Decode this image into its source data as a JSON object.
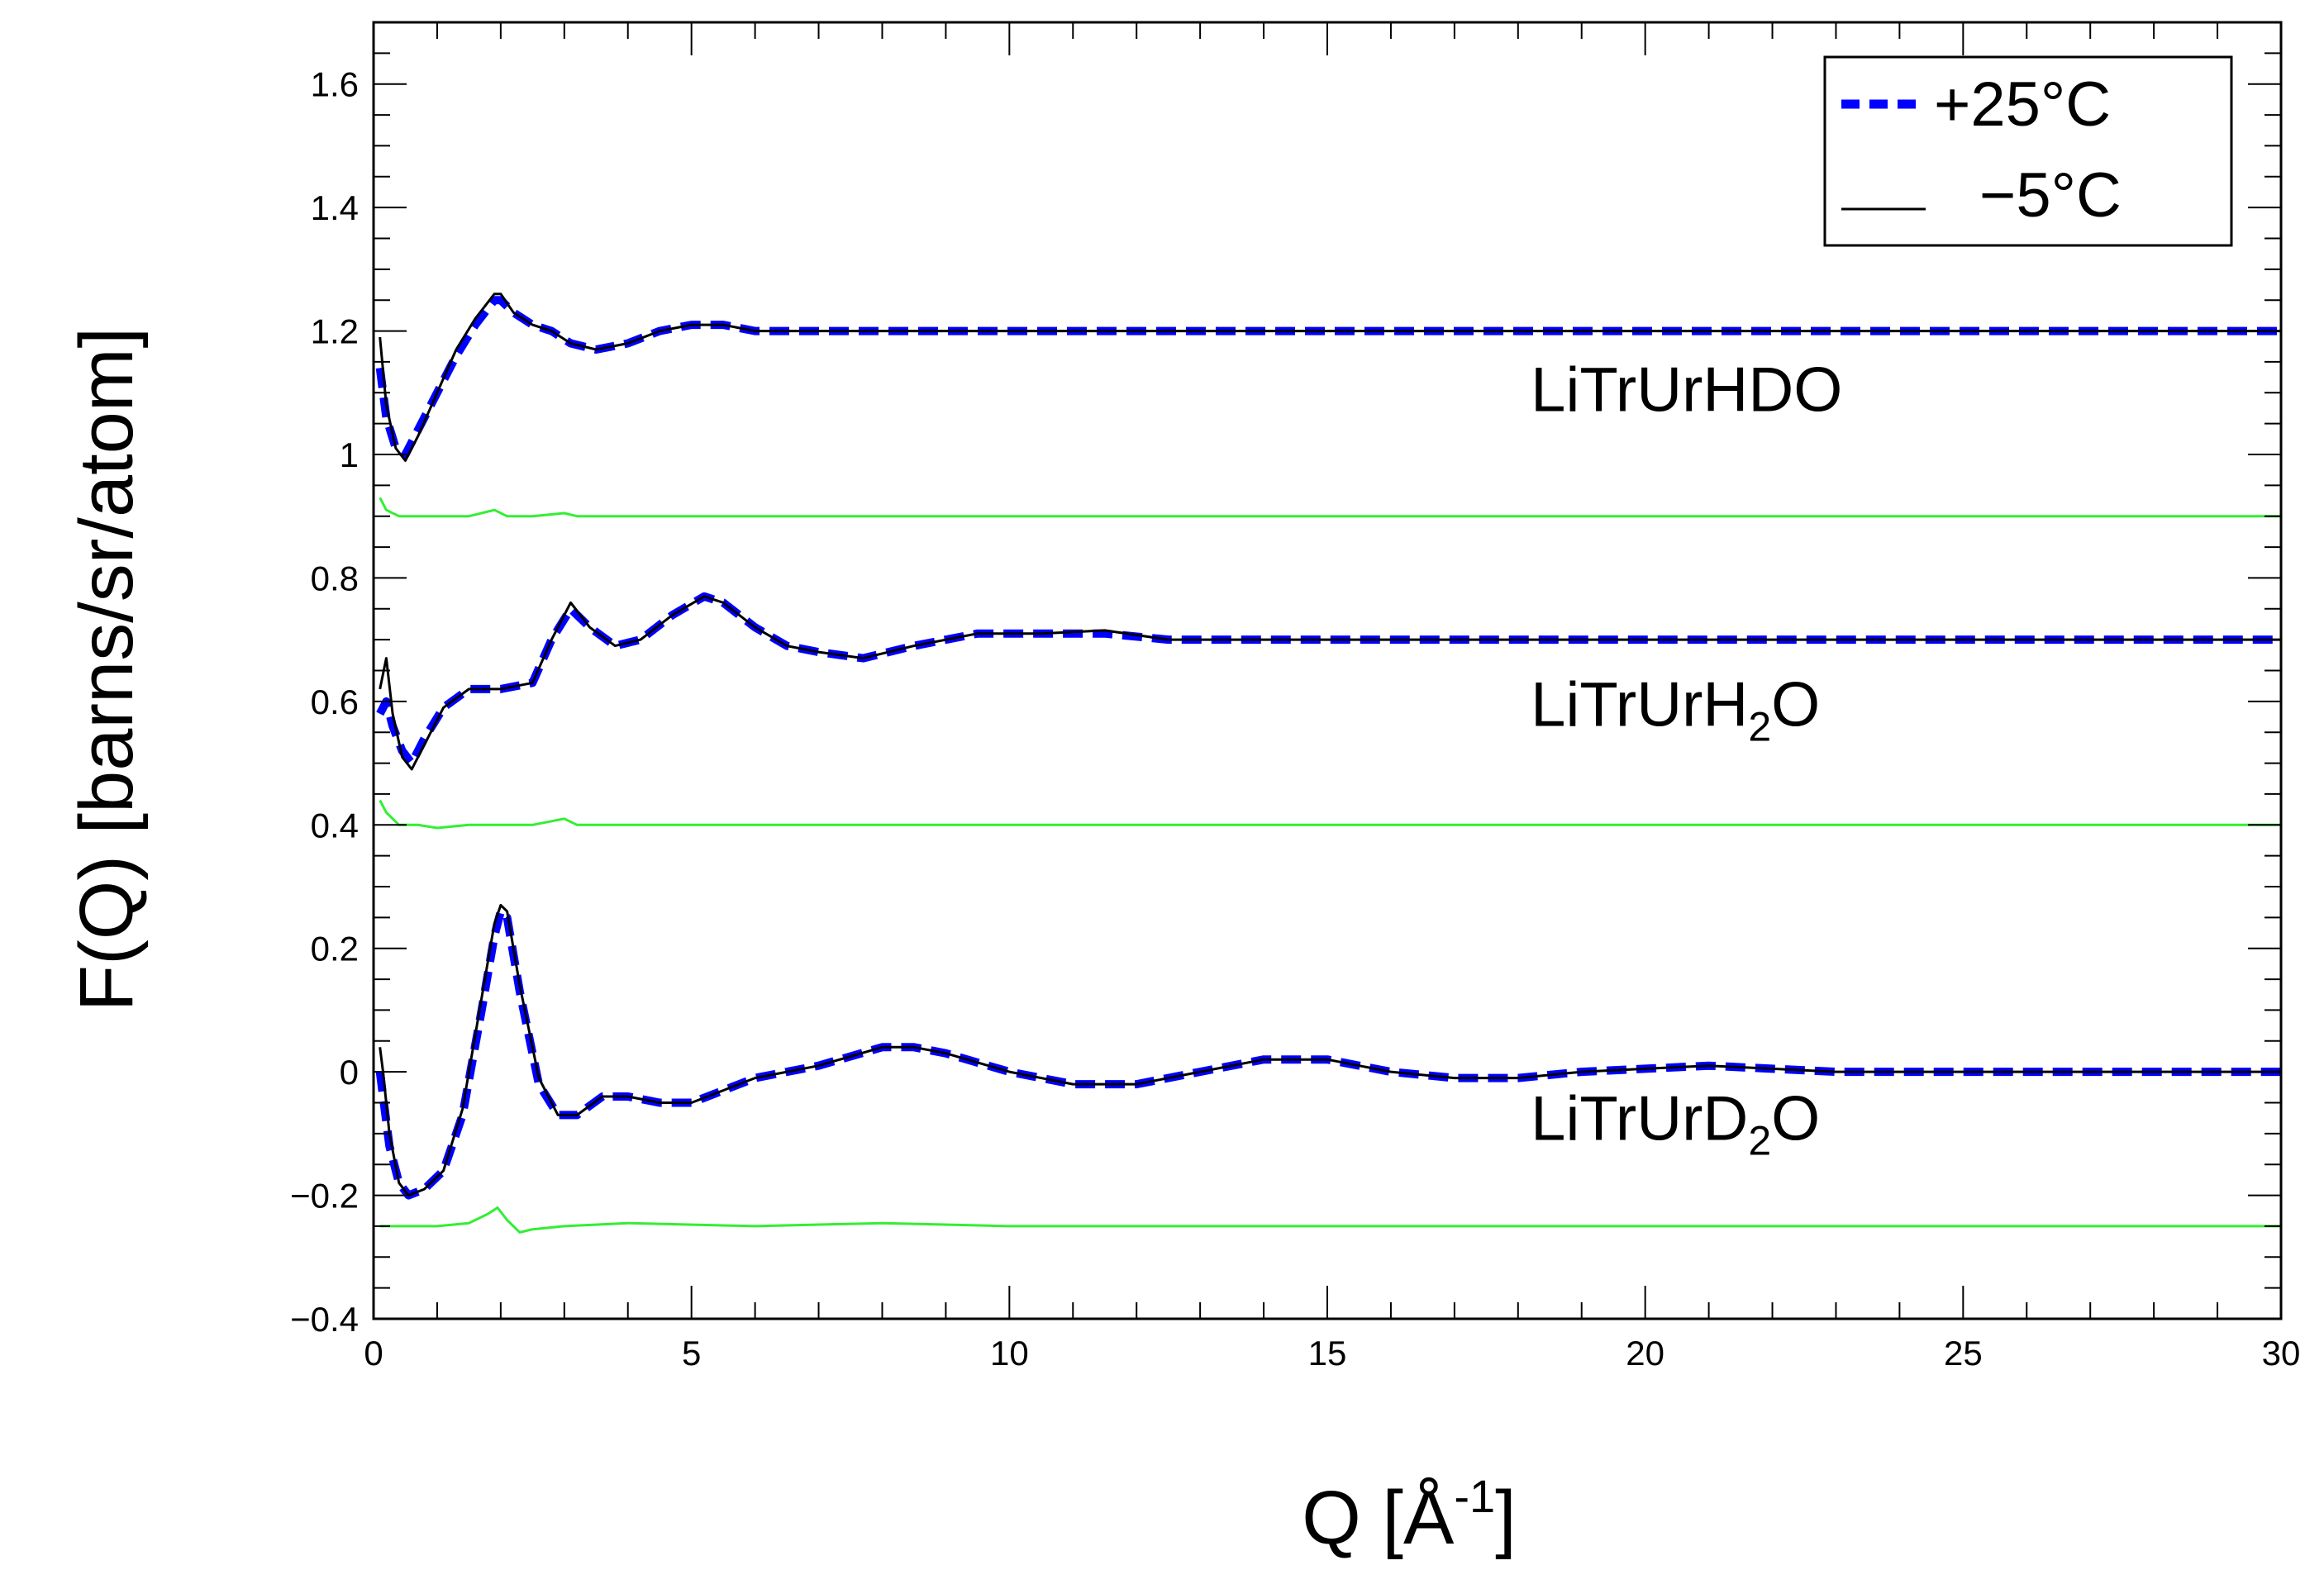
{
  "chart_data": {
    "type": "line",
    "xlabel": "Q [Å",
    "xlabel_sup": "-1",
    "xlabel_close": "]",
    "ylabel": "F(Q) [barns/sr/atom]",
    "xlim": [
      0,
      30
    ],
    "ylim": [
      -0.4,
      1.7
    ],
    "xticks": [
      0,
      5,
      10,
      15,
      20,
      25,
      30
    ],
    "xtick_labels": [
      "0",
      "5",
      "10",
      "15",
      "20",
      "25",
      "30"
    ],
    "yticks": [
      -0.4,
      -0.2,
      0,
      0.2,
      0.4,
      0.6,
      0.8,
      1,
      1.2,
      1.4,
      1.6
    ],
    "ytick_labels": [
      "−0.4",
      "−0.2",
      "0",
      "0.2",
      "0.4",
      "0.6",
      "0.8",
      "1",
      "1.2",
      "1.4",
      "1.6"
    ],
    "legend": {
      "position": "top-right",
      "entries": [
        {
          "label": "+25°C",
          "style": "dashed",
          "color": "#0000ff"
        },
        {
          "label": "−5°C",
          "style": "solid",
          "color": "#000000"
        }
      ]
    },
    "curve_labels": [
      {
        "text": "LiTrUrHDO",
        "sub": "",
        "tail": "",
        "x": 18.2,
        "y": 1.07
      },
      {
        "text": "LiTrUrH",
        "sub": "2",
        "tail": "O",
        "x": 18.2,
        "y": 0.56
      },
      {
        "text": "LiTrUrD",
        "sub": "2",
        "tail": "O",
        "x": 18.2,
        "y": -0.11
      }
    ],
    "series": [
      {
        "name": "+25°C",
        "group": "LiTrUrHDO",
        "color": "#0000ff",
        "style": "dashed",
        "x": [
          0.1,
          0.2,
          0.35,
          0.5,
          0.7,
          1.0,
          1.3,
          1.6,
          1.9,
          2.0,
          2.2,
          2.5,
          2.8,
          3.1,
          3.5,
          4.0,
          4.5,
          5.0,
          5.5,
          6.0,
          7.0,
          8.0,
          9.0,
          10.0,
          11.0,
          12.0,
          13.0,
          14.0,
          15.0,
          16.0,
          17.0,
          18.0,
          19.0,
          20.0,
          21.0,
          22.0,
          23.0,
          24.0,
          25.0,
          26.0,
          27.0,
          28.0,
          29.0,
          30.0
        ],
        "y": [
          1.14,
          1.06,
          1.01,
          1.0,
          1.04,
          1.1,
          1.16,
          1.21,
          1.25,
          1.25,
          1.23,
          1.21,
          1.2,
          1.18,
          1.17,
          1.18,
          1.2,
          1.21,
          1.21,
          1.2,
          1.2,
          1.2,
          1.2,
          1.2,
          1.2,
          1.2,
          1.2,
          1.2,
          1.2,
          1.2,
          1.2,
          1.2,
          1.2,
          1.2,
          1.2,
          1.2,
          1.2,
          1.2,
          1.2,
          1.2,
          1.2,
          1.2,
          1.2,
          1.2
        ]
      },
      {
        "name": "−5°C",
        "group": "LiTrUrHDO",
        "color": "#000000",
        "style": "solid",
        "x": [
          0.1,
          0.2,
          0.35,
          0.5,
          0.7,
          1.0,
          1.3,
          1.6,
          1.9,
          2.0,
          2.2,
          2.5,
          2.8,
          3.1,
          3.5,
          4.0,
          4.5,
          5.0,
          5.5,
          6.0,
          7.0,
          8.0,
          9.0,
          10.0,
          11.0,
          12.0,
          13.0,
          14.0,
          15.0,
          16.0,
          17.0,
          18.0,
          19.0,
          20.0,
          21.0,
          22.0,
          23.0,
          24.0,
          25.0,
          26.0,
          27.0,
          28.0,
          29.0,
          30.0
        ],
        "y": [
          1.19,
          1.08,
          1.01,
          0.99,
          1.03,
          1.1,
          1.17,
          1.22,
          1.26,
          1.26,
          1.23,
          1.21,
          1.2,
          1.18,
          1.17,
          1.18,
          1.2,
          1.21,
          1.21,
          1.2,
          1.2,
          1.2,
          1.2,
          1.2,
          1.2,
          1.2,
          1.2,
          1.2,
          1.2,
          1.2,
          1.2,
          1.2,
          1.2,
          1.2,
          1.2,
          1.2,
          1.2,
          1.2,
          1.2,
          1.2,
          1.2,
          1.2,
          1.2,
          1.2
        ]
      },
      {
        "name": "",
        "group": "LiTrUrHDO",
        "color": "#33ee33",
        "style": "solid",
        "x": [
          0.1,
          0.2,
          0.4,
          0.7,
          1.0,
          1.5,
          1.9,
          2.1,
          2.5,
          3.0,
          3.2,
          3.6,
          4.5,
          6,
          8,
          10,
          12,
          14,
          16,
          18,
          20,
          22,
          24,
          26,
          28,
          30
        ],
        "y": [
          0.93,
          0.91,
          0.9,
          0.9,
          0.9,
          0.9,
          0.91,
          0.9,
          0.9,
          0.905,
          0.9,
          0.9,
          0.9,
          0.9,
          0.9,
          0.9,
          0.9,
          0.9,
          0.9,
          0.9,
          0.9,
          0.9,
          0.9,
          0.9,
          0.9,
          0.9
        ]
      },
      {
        "name": "+25°C",
        "group": "LiTrUrH2O",
        "color": "#0000ff",
        "style": "dashed",
        "x": [
          0.1,
          0.2,
          0.3,
          0.45,
          0.6,
          0.8,
          1.1,
          1.5,
          2.0,
          2.5,
          2.8,
          3.1,
          3.4,
          3.8,
          4.2,
          4.7,
          5.2,
          5.5,
          6.0,
          6.5,
          7.0,
          7.7,
          8.5,
          9.5,
          10.5,
          11.5,
          12.5,
          14,
          16,
          18,
          20,
          22,
          24,
          26,
          28,
          30
        ],
        "y": [
          0.58,
          0.6,
          0.56,
          0.52,
          0.5,
          0.54,
          0.59,
          0.62,
          0.62,
          0.63,
          0.7,
          0.75,
          0.72,
          0.69,
          0.7,
          0.74,
          0.77,
          0.76,
          0.72,
          0.69,
          0.68,
          0.67,
          0.69,
          0.71,
          0.71,
          0.71,
          0.7,
          0.7,
          0.7,
          0.7,
          0.7,
          0.7,
          0.7,
          0.7,
          0.7,
          0.7
        ]
      },
      {
        "name": "−5°C",
        "group": "LiTrUrH2O",
        "color": "#000000",
        "style": "solid",
        "x": [
          0.1,
          0.2,
          0.3,
          0.45,
          0.6,
          0.8,
          1.1,
          1.5,
          2.0,
          2.5,
          2.8,
          3.1,
          3.4,
          3.8,
          4.2,
          4.7,
          5.2,
          5.5,
          6.0,
          6.5,
          7.0,
          7.7,
          8.5,
          9.5,
          10.5,
          11.5,
          12.5,
          14,
          16,
          18,
          20,
          22,
          24,
          26,
          28,
          30
        ],
        "y": [
          0.62,
          0.67,
          0.58,
          0.51,
          0.49,
          0.53,
          0.59,
          0.62,
          0.62,
          0.63,
          0.7,
          0.76,
          0.72,
          0.69,
          0.7,
          0.74,
          0.77,
          0.76,
          0.72,
          0.69,
          0.68,
          0.67,
          0.69,
          0.71,
          0.71,
          0.715,
          0.7,
          0.7,
          0.7,
          0.7,
          0.7,
          0.7,
          0.7,
          0.7,
          0.7,
          0.7
        ]
      },
      {
        "name": "",
        "group": "LiTrUrH2O",
        "color": "#33ee33",
        "style": "solid",
        "x": [
          0.1,
          0.2,
          0.4,
          0.7,
          1.0,
          1.5,
          2.5,
          3.0,
          3.2,
          3.6,
          4.5,
          6,
          8,
          10,
          12,
          14,
          16,
          18,
          20,
          22,
          24,
          26,
          28,
          30
        ],
        "y": [
          0.44,
          0.42,
          0.4,
          0.4,
          0.395,
          0.4,
          0.4,
          0.41,
          0.4,
          0.4,
          0.4,
          0.4,
          0.4,
          0.4,
          0.4,
          0.4,
          0.4,
          0.4,
          0.4,
          0.4,
          0.4,
          0.4,
          0.4,
          0.4
        ]
      },
      {
        "name": "+25°C",
        "group": "LiTrUrD2O",
        "color": "#0000ff",
        "style": "dashed",
        "x": [
          0.1,
          0.15,
          0.25,
          0.4,
          0.55,
          0.8,
          1.1,
          1.4,
          1.7,
          1.9,
          2.0,
          2.1,
          2.3,
          2.6,
          2.9,
          3.2,
          3.6,
          4.0,
          4.5,
          5.0,
          5.5,
          6.0,
          7.0,
          8.0,
          8.5,
          9.0,
          10.0,
          11.0,
          12.0,
          13.0,
          14.0,
          15.0,
          16.0,
          17.0,
          18.0,
          19.0,
          20.0,
          21.0,
          22.0,
          23.0,
          24.0,
          25.0,
          26.0,
          27.0,
          28.0,
          29.0,
          30.0
        ],
        "y": [
          0.0,
          -0.04,
          -0.12,
          -0.18,
          -0.2,
          -0.19,
          -0.16,
          -0.07,
          0.1,
          0.22,
          0.26,
          0.25,
          0.13,
          -0.02,
          -0.07,
          -0.07,
          -0.04,
          -0.04,
          -0.05,
          -0.05,
          -0.03,
          -0.01,
          0.01,
          0.04,
          0.04,
          0.03,
          0.0,
          -0.02,
          -0.02,
          0.0,
          0.02,
          0.02,
          0.0,
          -0.01,
          -0.01,
          0.0,
          0.005,
          0.01,
          0.005,
          0.0,
          0.0,
          0.0,
          0.0,
          0.0,
          0.0,
          0.0,
          0.0
        ]
      },
      {
        "name": "−5°C",
        "group": "LiTrUrD2O",
        "color": "#000000",
        "style": "solid",
        "x": [
          0.1,
          0.15,
          0.25,
          0.4,
          0.55,
          0.8,
          1.1,
          1.4,
          1.7,
          1.9,
          2.0,
          2.1,
          2.3,
          2.6,
          2.9,
          3.2,
          3.6,
          4.0,
          4.5,
          5.0,
          5.5,
          6.0,
          7.0,
          8.0,
          8.5,
          9.0,
          10.0,
          11.0,
          12.0,
          13.0,
          14.0,
          15.0,
          16.0,
          17.0,
          18.0,
          19.0,
          20.0,
          21.0,
          22.0,
          23.0,
          24.0,
          25.0,
          26.0,
          27.0,
          28.0,
          29.0,
          30.0
        ],
        "y": [
          0.04,
          0.0,
          -0.1,
          -0.18,
          -0.2,
          -0.19,
          -0.16,
          -0.06,
          0.12,
          0.24,
          0.27,
          0.26,
          0.14,
          -0.01,
          -0.07,
          -0.07,
          -0.04,
          -0.04,
          -0.05,
          -0.05,
          -0.03,
          -0.01,
          0.01,
          0.04,
          0.04,
          0.03,
          0.0,
          -0.02,
          -0.02,
          0.0,
          0.02,
          0.02,
          0.0,
          -0.01,
          -0.01,
          0.0,
          0.005,
          0.01,
          0.005,
          0.0,
          0.0,
          0.0,
          0.0,
          0.0,
          0.0,
          0.0,
          0.0
        ]
      },
      {
        "name": "",
        "group": "LiTrUrD2O",
        "color": "#33ee33",
        "style": "solid",
        "x": [
          0.1,
          0.5,
          1.0,
          1.5,
          1.8,
          1.95,
          2.1,
          2.3,
          2.5,
          3.0,
          4.0,
          6,
          8,
          10,
          12,
          14,
          16,
          18,
          20,
          22,
          24,
          26,
          28,
          30
        ],
        "y": [
          -0.25,
          -0.25,
          -0.25,
          -0.245,
          -0.23,
          -0.22,
          -0.24,
          -0.26,
          -0.255,
          -0.25,
          -0.245,
          -0.25,
          -0.245,
          -0.25,
          -0.25,
          -0.25,
          -0.25,
          -0.25,
          -0.25,
          -0.25,
          -0.25,
          -0.25,
          -0.25,
          -0.25
        ]
      }
    ]
  }
}
